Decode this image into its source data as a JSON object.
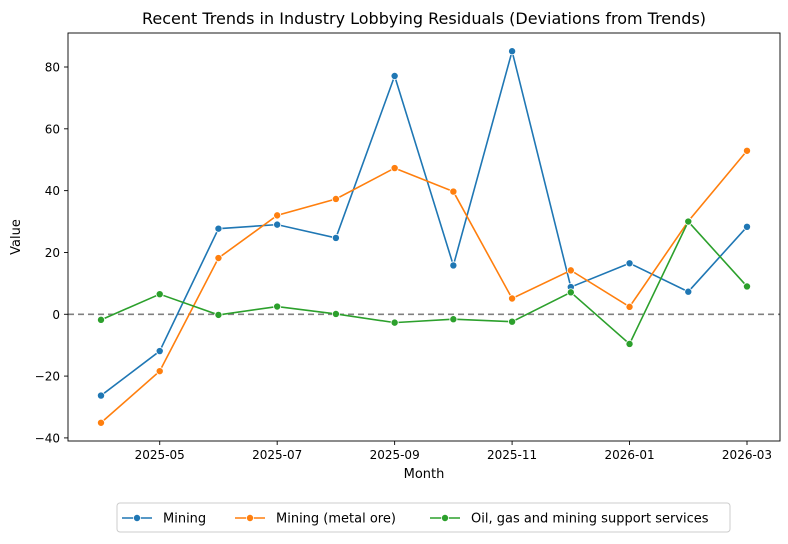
{
  "chart_data": {
    "type": "line",
    "title": "Recent Trends in Industry Lobbying Residuals (Deviations from Trends)",
    "xlabel": "Month",
    "ylabel": "Value",
    "x": [
      "2025-04",
      "2025-05",
      "2025-06",
      "2025-07",
      "2025-08",
      "2025-09",
      "2025-10",
      "2025-11",
      "2025-12",
      "2026-01",
      "2026-02",
      "2026-03"
    ],
    "x_tick_labels": [
      "2025-05",
      "2025-07",
      "2025-09",
      "2025-11",
      "2026-01",
      "2026-03"
    ],
    "y_ticks": [
      -40,
      -20,
      0,
      20,
      40,
      60,
      80
    ],
    "ylim": [
      -41,
      91
    ],
    "reference_line": {
      "y": 0,
      "style": "dashed",
      "color": "#808080"
    },
    "grid": false,
    "legend_position": "bottom-center",
    "series": [
      {
        "name": "Mining",
        "color": "#1f77b4",
        "values": [
          -26.3,
          -11.9,
          27.7,
          29.0,
          24.7,
          77.1,
          15.8,
          85.1,
          8.8,
          16.5,
          7.3,
          28.3
        ]
      },
      {
        "name": "Mining (metal ore)",
        "color": "#ff7f0e",
        "values": [
          -35.1,
          -18.4,
          18.2,
          32.0,
          37.3,
          47.3,
          39.7,
          5.1,
          14.2,
          2.4,
          30.1,
          52.9
        ]
      },
      {
        "name": "Oil, gas and mining support services",
        "color": "#2ca02c",
        "values": [
          -1.8,
          6.5,
          -0.2,
          2.5,
          0.1,
          -2.7,
          -1.6,
          -2.4,
          7.1,
          -9.6,
          30.0,
          9.0
        ]
      }
    ]
  }
}
